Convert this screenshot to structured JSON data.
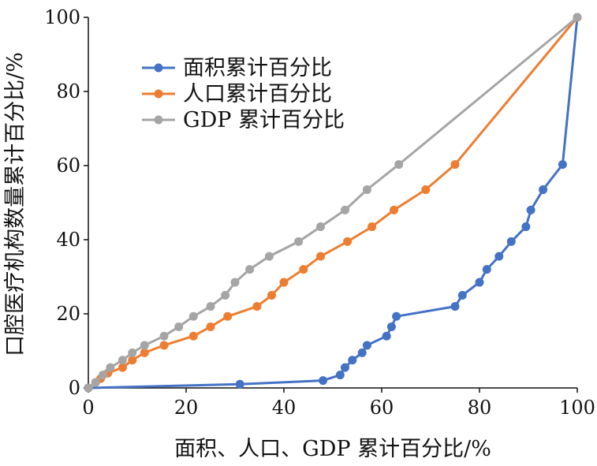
{
  "chart_data": {
    "type": "line",
    "xlabel": "面积、人口、GDP 累计百分比/%",
    "ylabel": "口腔医疗机构数量累计百分比/%",
    "xlim": [
      0,
      100
    ],
    "ylim": [
      0,
      100
    ],
    "x_ticks": [
      "0",
      "20",
      "40",
      "60",
      "80",
      "100"
    ],
    "y_ticks": [
      "0",
      "20",
      "40",
      "60",
      "80",
      "100"
    ],
    "grid": false,
    "legend_position": "top-left",
    "series": [
      {
        "name": "面积累计百分比",
        "color": "#4472C4",
        "points": [
          [
            0,
            0
          ],
          [
            31,
            1
          ],
          [
            48,
            2
          ],
          [
            51.5,
            3.5
          ],
          [
            52.5,
            5.5
          ],
          [
            54,
            7.5
          ],
          [
            56,
            9.5
          ],
          [
            57,
            11.5
          ],
          [
            61,
            14
          ],
          [
            62,
            16.5
          ],
          [
            63,
            19.3
          ],
          [
            75,
            22
          ],
          [
            76.5,
            25
          ],
          [
            80,
            28.5
          ],
          [
            81.5,
            32
          ],
          [
            84,
            35.5
          ],
          [
            86.5,
            39.5
          ],
          [
            89.5,
            43.5
          ],
          [
            90.5,
            48
          ],
          [
            93,
            53.5
          ],
          [
            97,
            60.3
          ],
          [
            100,
            100
          ]
        ]
      },
      {
        "name": "人口累计百分比",
        "color": "#ED7D31",
        "points": [
          [
            0,
            0
          ],
          [
            1.5,
            1.5
          ],
          [
            2.5,
            2.5
          ],
          [
            4,
            4
          ],
          [
            7,
            5.5
          ],
          [
            9,
            7.5
          ],
          [
            11.5,
            9.5
          ],
          [
            15.5,
            11.5
          ],
          [
            21.5,
            14
          ],
          [
            25,
            16.5
          ],
          [
            28.5,
            19.3
          ],
          [
            34.5,
            22
          ],
          [
            37.5,
            25
          ],
          [
            40,
            28.5
          ],
          [
            44,
            32
          ],
          [
            47.5,
            35.5
          ],
          [
            53,
            39.5
          ],
          [
            58,
            43.5
          ],
          [
            62.5,
            48
          ],
          [
            69,
            53.5
          ],
          [
            75,
            60.3
          ],
          [
            100,
            100
          ]
        ]
      },
      {
        "name": "GDP 累计百分比",
        "color": "#A5A5A5",
        "points": [
          [
            0,
            0
          ],
          [
            1.5,
            1.5
          ],
          [
            3,
            3.5
          ],
          [
            4.5,
            5.5
          ],
          [
            7,
            7.5
          ],
          [
            9,
            9.5
          ],
          [
            11.5,
            11.5
          ],
          [
            15.5,
            14
          ],
          [
            18.5,
            16.5
          ],
          [
            21.5,
            19.3
          ],
          [
            25,
            22
          ],
          [
            28,
            25
          ],
          [
            30,
            28.5
          ],
          [
            33,
            32
          ],
          [
            37,
            35.5
          ],
          [
            43,
            39.5
          ],
          [
            47.5,
            43.5
          ],
          [
            52.5,
            48
          ],
          [
            57,
            53.5
          ],
          [
            63.5,
            60.3
          ],
          [
            100,
            100
          ]
        ]
      }
    ]
  }
}
